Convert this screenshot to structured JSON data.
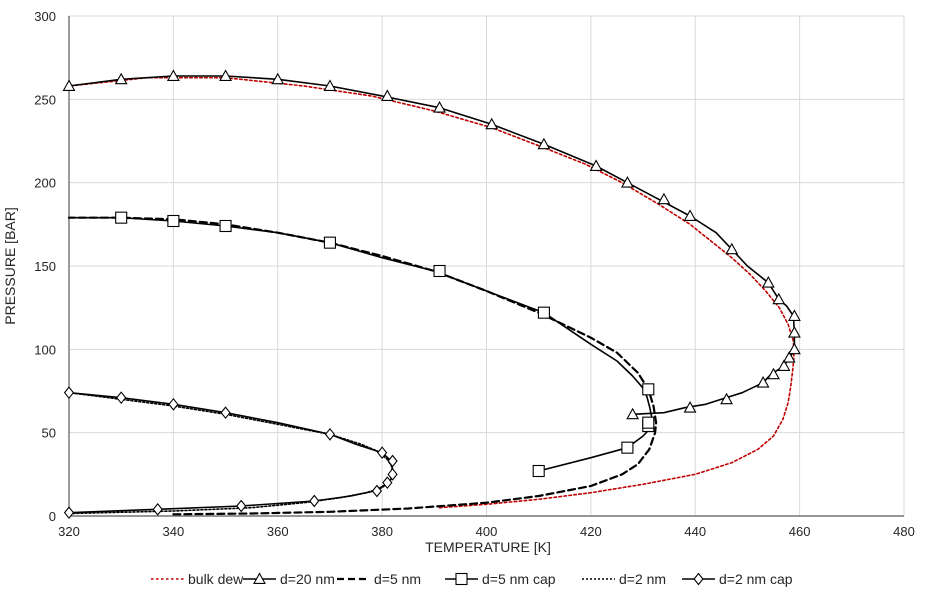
{
  "chart_data": {
    "type": "line",
    "xlabel": "TEMPERATURE [K]",
    "ylabel": "PRESSURE [BAR]",
    "xlim": [
      320,
      480
    ],
    "ylim": [
      0,
      300
    ],
    "x_ticks": [
      320,
      340,
      360,
      380,
      400,
      420,
      440,
      460,
      480
    ],
    "y_ticks": [
      0,
      50,
      100,
      150,
      200,
      250,
      300
    ],
    "grid": true,
    "legend_position": "bottom",
    "series": [
      {
        "name": "bulk dew",
        "color": "#c00000",
        "line": "dotted",
        "marker": "none",
        "points": [
          [
            391,
            5
          ],
          [
            400,
            7
          ],
          [
            410,
            10
          ],
          [
            420,
            14
          ],
          [
            430,
            19
          ],
          [
            440,
            25
          ],
          [
            447,
            32
          ],
          [
            452,
            40
          ],
          [
            455,
            48
          ],
          [
            456.8,
            58
          ],
          [
            457.8,
            68
          ],
          [
            458.3,
            78
          ],
          [
            458.7,
            88
          ],
          [
            458.9,
            95
          ],
          [
            458.8,
            105
          ],
          [
            457.8,
            115
          ],
          [
            456.1,
            125
          ],
          [
            453.5,
            135
          ],
          [
            450.5,
            145
          ],
          [
            447,
            155
          ],
          [
            443,
            165
          ],
          [
            439,
            175
          ],
          [
            433,
            187
          ],
          [
            426,
            200
          ],
          [
            419,
            211
          ],
          [
            411,
            221
          ],
          [
            401,
            233
          ],
          [
            390,
            243
          ],
          [
            378,
            252
          ],
          [
            365,
            258
          ],
          [
            350,
            263
          ],
          [
            335,
            263
          ],
          [
            320,
            258
          ]
        ]
      },
      {
        "name": "d=20 nm",
        "color": "#000000",
        "line": "solid",
        "marker": "triangle",
        "points": [
          [
            428,
            61
          ],
          [
            434,
            62
          ],
          [
            438,
            65
          ],
          [
            442,
            67
          ],
          [
            445,
            70
          ],
          [
            449,
            74
          ],
          [
            453,
            80
          ],
          [
            454.5,
            85
          ],
          [
            457,
            90
          ],
          [
            458,
            95
          ],
          [
            459,
            99
          ],
          [
            459,
            110
          ],
          [
            458.8,
            120
          ],
          [
            457.5,
            126
          ],
          [
            456,
            130
          ],
          [
            454,
            140
          ],
          [
            450,
            150
          ],
          [
            447,
            160
          ],
          [
            444,
            170
          ],
          [
            439,
            180
          ],
          [
            433,
            190
          ],
          [
            427,
            200
          ],
          [
            421,
            210
          ],
          [
            411,
            223
          ],
          [
            401,
            235
          ],
          [
            391,
            245
          ],
          [
            380,
            252
          ],
          [
            370,
            258
          ],
          [
            360,
            262
          ],
          [
            350,
            264
          ],
          [
            340,
            264
          ],
          [
            330,
            262
          ],
          [
            320,
            258
          ]
        ],
        "marker_points": [
          [
            428,
            61
          ],
          [
            439,
            65
          ],
          [
            446,
            70
          ],
          [
            453,
            80
          ],
          [
            455,
            85
          ],
          [
            457,
            90
          ],
          [
            458,
            95
          ],
          [
            459,
            100
          ],
          [
            459,
            110
          ],
          [
            459,
            120
          ],
          [
            456,
            130
          ],
          [
            454,
            140
          ],
          [
            447,
            160
          ],
          [
            439,
            180
          ],
          [
            434,
            190
          ],
          [
            427,
            200
          ],
          [
            421,
            210
          ],
          [
            411,
            223
          ],
          [
            401,
            235
          ],
          [
            391,
            245
          ],
          [
            381,
            252
          ],
          [
            370,
            258
          ],
          [
            360,
            262
          ],
          [
            350,
            264
          ],
          [
            340,
            264
          ],
          [
            330,
            262
          ],
          [
            320,
            258
          ]
        ]
      },
      {
        "name": "d=5 nm",
        "color": "#000000",
        "line": "dashed",
        "marker": "none",
        "points": [
          [
            340,
            1
          ],
          [
            355,
            1.5
          ],
          [
            370,
            2.5
          ],
          [
            385,
            4.5
          ],
          [
            400,
            8
          ],
          [
            410,
            12
          ],
          [
            420,
            18
          ],
          [
            426,
            25
          ],
          [
            429,
            31
          ],
          [
            431.2,
            40
          ],
          [
            432.3,
            50
          ],
          [
            432.5,
            56
          ],
          [
            432,
            66
          ],
          [
            431,
            76
          ],
          [
            429,
            86
          ],
          [
            425,
            98
          ],
          [
            420,
            107
          ],
          [
            410,
            122
          ],
          [
            400,
            135
          ],
          [
            390,
            147
          ],
          [
            380,
            156
          ],
          [
            370,
            164
          ],
          [
            360,
            170
          ],
          [
            350,
            175
          ],
          [
            340,
            178
          ],
          [
            330,
            179
          ],
          [
            320,
            179
          ]
        ]
      },
      {
        "name": "d=5 nm cap",
        "color": "#000000",
        "line": "solid",
        "marker": "square",
        "points": [
          [
            410,
            27
          ],
          [
            420,
            35
          ],
          [
            427,
            41
          ],
          [
            430,
            48
          ],
          [
            431.5,
            53
          ],
          [
            431.8,
            57
          ],
          [
            431.3,
            65
          ],
          [
            430.8,
            71
          ],
          [
            430.2,
            76
          ],
          [
            428,
            84
          ],
          [
            425,
            93
          ],
          [
            420,
            103
          ],
          [
            411,
            122
          ],
          [
            400,
            135
          ],
          [
            390,
            147
          ],
          [
            380,
            155
          ],
          [
            370,
            164
          ],
          [
            360,
            170
          ],
          [
            350,
            174
          ],
          [
            340,
            177
          ],
          [
            330,
            179
          ],
          [
            320,
            179
          ]
        ],
        "marker_points": [
          [
            410,
            27
          ],
          [
            427,
            41
          ],
          [
            431,
            54
          ],
          [
            431,
            56
          ],
          [
            431,
            76
          ],
          [
            411,
            122
          ],
          [
            391,
            147
          ],
          [
            370,
            164
          ],
          [
            350,
            174
          ],
          [
            340,
            177
          ],
          [
            330,
            179
          ]
        ]
      },
      {
        "name": "d=2 nm",
        "color": "#000000",
        "line": "dotted",
        "marker": "none",
        "points": [
          [
            320,
            1.5
          ],
          [
            340,
            3
          ],
          [
            355,
            5
          ],
          [
            365,
            8
          ],
          [
            372,
            11
          ],
          [
            377,
            14
          ],
          [
            380,
            17
          ],
          [
            381.5,
            21
          ],
          [
            382,
            25
          ],
          [
            381.8,
            30
          ],
          [
            381,
            34
          ],
          [
            379,
            39
          ],
          [
            376,
            43
          ],
          [
            370,
            49
          ],
          [
            360,
            55
          ],
          [
            350,
            61
          ],
          [
            340,
            66
          ],
          [
            330,
            70
          ],
          [
            320,
            74
          ]
        ]
      },
      {
        "name": "d=2 nm cap",
        "color": "#000000",
        "line": "solid",
        "marker": "diamond",
        "points": [
          [
            320,
            2
          ],
          [
            337,
            4
          ],
          [
            353,
            6
          ],
          [
            367,
            9
          ],
          [
            374,
            12
          ],
          [
            378.5,
            15
          ],
          [
            381.3,
            20
          ],
          [
            382.2,
            25
          ],
          [
            382,
            28
          ],
          [
            381.7,
            33
          ],
          [
            380.7,
            36
          ],
          [
            380,
            38
          ],
          [
            375,
            43
          ],
          [
            370,
            49
          ],
          [
            360,
            56
          ],
          [
            350,
            62
          ],
          [
            340,
            67
          ],
          [
            330,
            71
          ],
          [
            320,
            74
          ]
        ],
        "marker_points": [
          [
            320,
            2
          ],
          [
            337,
            4
          ],
          [
            353,
            6
          ],
          [
            367,
            9
          ],
          [
            379,
            15
          ],
          [
            381,
            20
          ],
          [
            382,
            25
          ],
          [
            382,
            33
          ],
          [
            380,
            38
          ],
          [
            370,
            49
          ],
          [
            350,
            62
          ],
          [
            340,
            67
          ],
          [
            330,
            71
          ],
          [
            320,
            74
          ]
        ]
      }
    ]
  }
}
